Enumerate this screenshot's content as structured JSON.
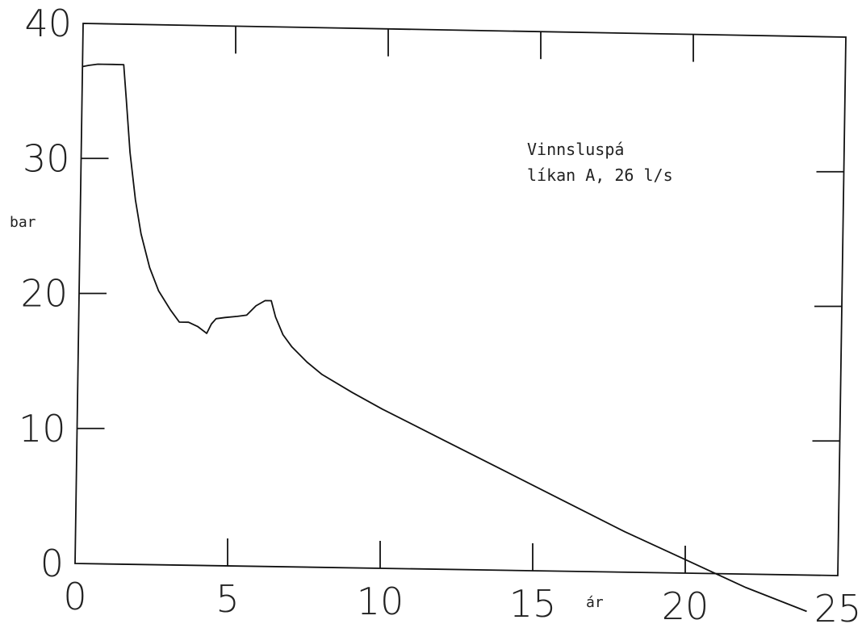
{
  "chart_data": {
    "type": "line",
    "title": "",
    "annotation_lines": [
      "Vinnsluspá",
      "líkan A, 26 l/s"
    ],
    "xlabel": "ár",
    "ylabel": "bar",
    "xlim": [
      0,
      25
    ],
    "ylim": [
      0,
      40
    ],
    "x_ticks": [
      0,
      5,
      10,
      15,
      20,
      25
    ],
    "y_ticks": [
      0,
      10,
      20,
      30,
      40
    ],
    "x_tick_labels": [
      "0",
      "5",
      "10",
      "15",
      "20",
      "25"
    ],
    "y_tick_labels": [
      "0",
      "10",
      "20",
      "30",
      "40"
    ],
    "grid": false,
    "legend": "none",
    "line_color": "#111111",
    "series": [
      {
        "x": [
          0.0,
          0.2,
          0.5,
          1.0,
          1.35,
          1.45,
          1.6,
          1.8,
          2.0,
          2.3,
          2.6,
          3.0,
          3.3,
          3.6,
          3.9,
          4.2,
          4.35,
          4.5,
          4.8,
          5.2,
          5.5,
          5.8,
          6.1,
          6.3,
          6.45,
          6.7,
          7.0,
          7.5,
          8.0,
          9.0,
          10.0,
          12.0,
          14.0,
          16.0,
          18.0,
          20.0,
          22.0,
          24.0
        ],
        "y": [
          36.8,
          36.9,
          37.0,
          37.0,
          37.0,
          34.5,
          30.5,
          27.0,
          24.5,
          22.0,
          20.3,
          18.9,
          18.0,
          18.0,
          17.7,
          17.2,
          17.9,
          18.3,
          18.4,
          18.5,
          18.6,
          19.3,
          19.7,
          19.7,
          18.5,
          17.2,
          16.3,
          15.2,
          14.3,
          13.0,
          11.8,
          9.6,
          7.4,
          5.2,
          3.0,
          1.0,
          -1.0,
          -2.7
        ]
      }
    ]
  }
}
